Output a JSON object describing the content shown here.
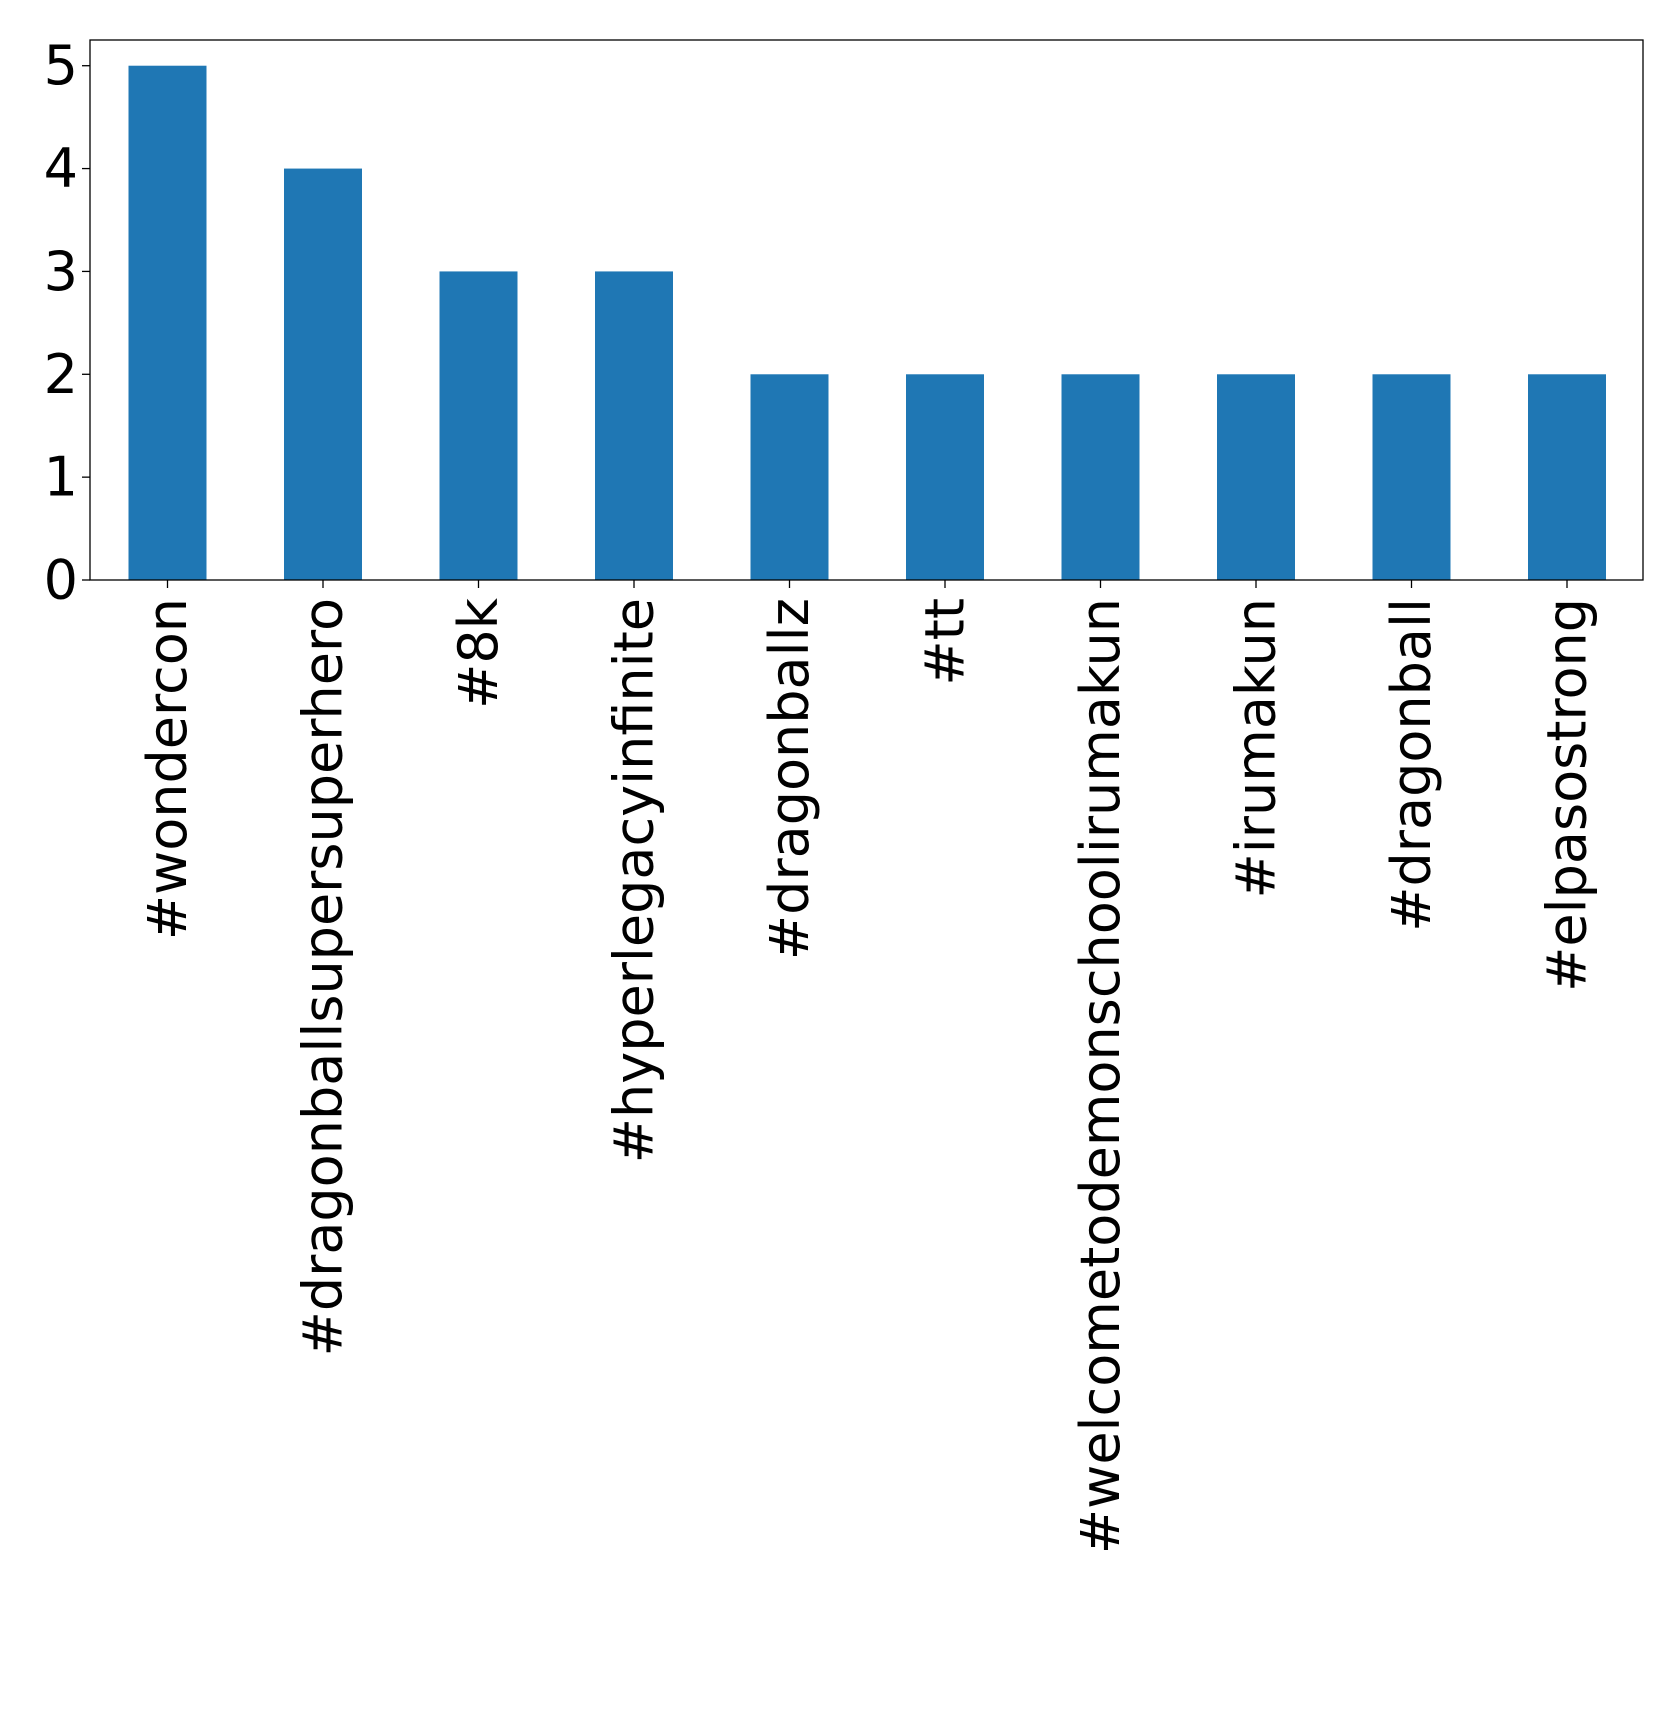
{
  "chart_data": {
    "type": "bar",
    "categories": [
      "#wondercon",
      "#dragonballsupersuperhero",
      "#8k",
      "#hyperlegacyinfinite",
      "#dragonballz",
      "#tt",
      "#welcometodemonschoolirumakun",
      "#irumakun",
      "#dragonball",
      "#elpasostrong"
    ],
    "values": [
      5,
      4,
      3,
      3,
      2,
      2,
      2,
      2,
      2,
      2
    ],
    "title": "",
    "xlabel": "",
    "ylabel": "",
    "ylim": [
      0,
      5.25
    ],
    "yticks": [
      "0",
      "1",
      "2",
      "3",
      "4",
      "5"
    ],
    "bar_color": "#1f77b4",
    "grid": false,
    "legend": "none"
  }
}
